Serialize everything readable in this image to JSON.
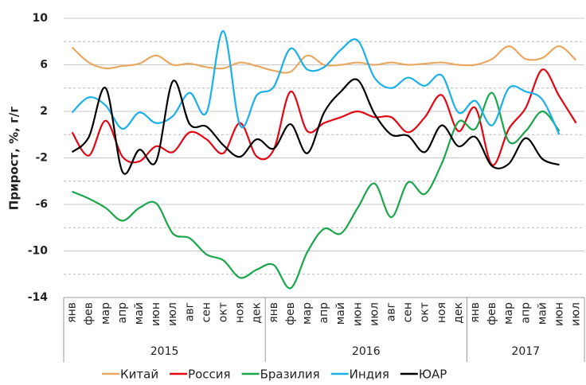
{
  "chart_data": {
    "type": "line",
    "y_label": "Прирост, %, г/г",
    "groups": [
      {
        "label": "2015",
        "categories": [
          "янв",
          "фев",
          "мар",
          "апр",
          "май",
          "июн",
          "июл",
          "авг",
          "сен",
          "окт",
          "ноя",
          "дек"
        ]
      },
      {
        "label": "2016",
        "categories": [
          "янв",
          "фев",
          "мар",
          "апр",
          "май",
          "июн",
          "июл",
          "авг",
          "сен",
          "окт",
          "ноя",
          "дек"
        ]
      },
      {
        "label": "2017",
        "categories": [
          "янв",
          "фев",
          "мар",
          "апр",
          "май",
          "июн",
          "июл"
        ]
      }
    ],
    "ylim": [
      -14,
      10
    ],
    "yticks": [
      -14,
      -10,
      -6,
      -2,
      2,
      6,
      10
    ],
    "grid": true,
    "minor_grid": true,
    "smooth": true,
    "legend": "bottom",
    "series": [
      {
        "name": "Китай",
        "color": "#e8a862",
        "values": [
          7.5,
          6.2,
          5.7,
          5.9,
          6.1,
          6.8,
          6.0,
          6.1,
          5.8,
          5.7,
          6.2,
          5.9,
          5.5,
          5.4,
          6.8,
          6.0,
          6.0,
          6.2,
          6.0,
          6.2,
          6.0,
          6.1,
          6.2,
          6.0,
          6.0,
          6.5,
          7.6,
          6.5,
          6.6,
          7.6,
          6.4
        ]
      },
      {
        "name": "Россия",
        "color": "#e30613",
        "values": [
          0.2,
          -1.8,
          1.2,
          -1.9,
          -2.3,
          -1.0,
          -1.5,
          0.2,
          -0.4,
          -1.6,
          1.0,
          -1.9,
          -1.3,
          3.7,
          0.3,
          1.0,
          1.5,
          2.0,
          1.5,
          1.5,
          0.2,
          1.5,
          3.4,
          0.3,
          2.3,
          -2.6,
          0.5,
          2.3,
          5.6,
          3.3,
          1.0
        ]
      },
      {
        "name": "Бразилия",
        "color": "#1aa64a",
        "values": [
          -4.9,
          -5.5,
          -6.3,
          -7.4,
          -6.3,
          -5.9,
          -8.5,
          -8.9,
          -10.3,
          -10.8,
          -12.3,
          -11.6,
          -11.2,
          -13.2,
          -10.1,
          -8.1,
          -8.5,
          -6.3,
          -4.2,
          -7.1,
          -4.1,
          -5.1,
          -2.5,
          1.1,
          0.5,
          3.6,
          -0.6,
          0.3,
          2.0,
          0.3,
          null
        ]
      },
      {
        "name": "Индия",
        "color": "#1ab0e8",
        "values": [
          1.9,
          3.2,
          2.5,
          0.5,
          1.9,
          1.0,
          1.6,
          3.6,
          1.9,
          8.9,
          0.8,
          3.4,
          4.1,
          7.4,
          5.6,
          5.8,
          7.3,
          8.1,
          4.9,
          4.0,
          4.9,
          4.2,
          5.1,
          1.9,
          2.9,
          0.8,
          4.0,
          3.7,
          3.0,
          0.0,
          null
        ]
      },
      {
        "name": "ЮАР",
        "color": "#000000",
        "values": [
          -1.5,
          -0.2,
          4.0,
          -3.2,
          -1.3,
          -2.3,
          4.6,
          0.9,
          0.7,
          -0.9,
          -1.9,
          -0.4,
          -1.2,
          0.9,
          -1.6,
          1.9,
          3.7,
          4.7,
          1.8,
          0.0,
          -0.1,
          -1.5,
          0.8,
          -1.0,
          -0.2,
          -2.7,
          -2.5,
          -0.3,
          -2.1,
          -2.6,
          null
        ]
      }
    ]
  }
}
